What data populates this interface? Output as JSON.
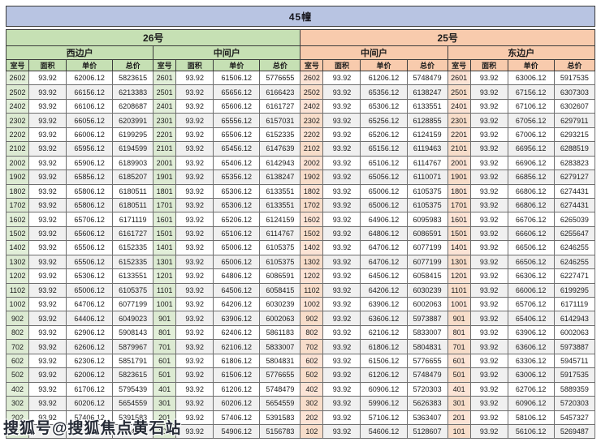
{
  "title": "45幢",
  "watermark": "搜狐号@搜狐焦点黄石站",
  "columns": [
    "室号",
    "面积",
    "单价",
    "总价"
  ],
  "sections": [
    {
      "label": "26号",
      "theme": "green",
      "groups": [
        "西边户",
        "中间户"
      ]
    },
    {
      "label": "25号",
      "theme": "orange",
      "groups": [
        "中间户",
        "东边户"
      ]
    }
  ],
  "colors": {
    "top_bar": "#b8c4e2",
    "section_green": "#c6e0b4",
    "section_orange": "#f8cbad",
    "room_green": "#e2efd9",
    "room_orange": "#fce4d6",
    "stripe": "#f0f0f0"
  },
  "rows": [
    [
      "2602",
      "93.92",
      "62006.12",
      "5823615",
      "2601",
      "93.92",
      "61506.12",
      "5776655",
      "2602",
      "93.92",
      "61206.12",
      "5748479",
      "2601",
      "93.92",
      "63006.12",
      "5917535"
    ],
    [
      "2502",
      "93.92",
      "66156.12",
      "6213383",
      "2501",
      "93.92",
      "65656.12",
      "6166423",
      "2502",
      "93.92",
      "65356.12",
      "6138247",
      "2501",
      "93.92",
      "67156.12",
      "6307303"
    ],
    [
      "2402",
      "93.92",
      "66106.12",
      "6208687",
      "2401",
      "93.92",
      "65606.12",
      "6161727",
      "2402",
      "93.92",
      "65306.12",
      "6133551",
      "2401",
      "93.92",
      "67106.12",
      "6302607"
    ],
    [
      "2302",
      "93.92",
      "66056.12",
      "6203991",
      "2301",
      "93.92",
      "65556.12",
      "6157031",
      "2302",
      "93.92",
      "65256.12",
      "6128855",
      "2301",
      "93.92",
      "67056.12",
      "6297911"
    ],
    [
      "2202",
      "93.92",
      "66006.12",
      "6199295",
      "2201",
      "93.92",
      "65506.12",
      "6152335",
      "2202",
      "93.92",
      "65206.12",
      "6124159",
      "2201",
      "93.92",
      "67006.12",
      "6293215"
    ],
    [
      "2102",
      "93.92",
      "65956.12",
      "6194599",
      "2101",
      "93.92",
      "65456.12",
      "6147639",
      "2102",
      "93.92",
      "65156.12",
      "6119463",
      "2101",
      "93.92",
      "66956.12",
      "6288519"
    ],
    [
      "2002",
      "93.92",
      "65906.12",
      "6189903",
      "2001",
      "93.92",
      "65406.12",
      "6142943",
      "2002",
      "93.92",
      "65106.12",
      "6114767",
      "2001",
      "93.92",
      "66906.12",
      "6283823"
    ],
    [
      "1902",
      "93.92",
      "65856.12",
      "6185207",
      "1901",
      "93.92",
      "65356.12",
      "6138247",
      "1902",
      "93.92",
      "65056.12",
      "6110071",
      "1901",
      "93.92",
      "66856.12",
      "6279127"
    ],
    [
      "1802",
      "93.92",
      "65806.12",
      "6180511",
      "1801",
      "93.92",
      "65306.12",
      "6133551",
      "1802",
      "93.92",
      "65006.12",
      "6105375",
      "1801",
      "93.92",
      "66806.12",
      "6274431"
    ],
    [
      "1702",
      "93.92",
      "65806.12",
      "6180511",
      "1701",
      "93.92",
      "65306.12",
      "6133551",
      "1702",
      "93.92",
      "65006.12",
      "6105375",
      "1701",
      "93.92",
      "66806.12",
      "6274431"
    ],
    [
      "1602",
      "93.92",
      "65706.12",
      "6171119",
      "1601",
      "93.92",
      "65206.12",
      "6124159",
      "1602",
      "93.92",
      "64906.12",
      "6095983",
      "1601",
      "93.92",
      "66706.12",
      "6265039"
    ],
    [
      "1502",
      "93.92",
      "65606.12",
      "6161727",
      "1501",
      "93.92",
      "65106.12",
      "6114767",
      "1502",
      "93.92",
      "64806.12",
      "6086591",
      "1501",
      "93.92",
      "66606.12",
      "6255647"
    ],
    [
      "1402",
      "93.92",
      "65506.12",
      "6152335",
      "1401",
      "93.92",
      "65006.12",
      "6105375",
      "1402",
      "93.92",
      "64706.12",
      "6077199",
      "1401",
      "93.92",
      "66506.12",
      "6246255"
    ],
    [
      "1302",
      "93.92",
      "65506.12",
      "6152335",
      "1301",
      "93.92",
      "65006.12",
      "6105375",
      "1302",
      "93.92",
      "64706.12",
      "6077199",
      "1301",
      "93.92",
      "66506.12",
      "6246255"
    ],
    [
      "1202",
      "93.92",
      "65306.12",
      "6133551",
      "1201",
      "93.92",
      "64806.12",
      "6086591",
      "1202",
      "93.92",
      "64506.12",
      "6058415",
      "1201",
      "93.92",
      "66306.12",
      "6227471"
    ],
    [
      "1102",
      "93.92",
      "65006.12",
      "6105375",
      "1101",
      "93.92",
      "64506.12",
      "6058415",
      "1102",
      "93.92",
      "64206.12",
      "6030239",
      "1101",
      "93.92",
      "66006.12",
      "6199295"
    ],
    [
      "1002",
      "93.92",
      "64706.12",
      "6077199",
      "1001",
      "93.92",
      "64206.12",
      "6030239",
      "1002",
      "93.92",
      "63906.12",
      "6002063",
      "1001",
      "93.92",
      "65706.12",
      "6171119"
    ],
    [
      "902",
      "93.92",
      "64406.12",
      "6049023",
      "901",
      "93.92",
      "63906.12",
      "6002063",
      "902",
      "93.92",
      "63606.12",
      "5973887",
      "901",
      "93.92",
      "65406.12",
      "6142943"
    ],
    [
      "802",
      "93.92",
      "62906.12",
      "5908143",
      "801",
      "93.92",
      "62406.12",
      "5861183",
      "802",
      "93.92",
      "62106.12",
      "5833007",
      "801",
      "93.92",
      "63906.12",
      "6002063"
    ],
    [
      "702",
      "93.92",
      "62606.12",
      "5879967",
      "701",
      "93.92",
      "62106.12",
      "5833007",
      "702",
      "93.92",
      "61806.12",
      "5804831",
      "701",
      "93.92",
      "63606.12",
      "5973887"
    ],
    [
      "602",
      "93.92",
      "62306.12",
      "5851791",
      "601",
      "93.92",
      "61806.12",
      "5804831",
      "602",
      "93.92",
      "61506.12",
      "5776655",
      "601",
      "93.92",
      "63306.12",
      "5945711"
    ],
    [
      "502",
      "93.92",
      "62006.12",
      "5823615",
      "501",
      "93.92",
      "61506.12",
      "5776655",
      "502",
      "93.92",
      "61206.12",
      "5748479",
      "501",
      "93.92",
      "63006.12",
      "5917535"
    ],
    [
      "402",
      "93.92",
      "61706.12",
      "5795439",
      "401",
      "93.92",
      "61206.12",
      "5748479",
      "402",
      "93.92",
      "60906.12",
      "5720303",
      "401",
      "93.92",
      "62706.12",
      "5889359"
    ],
    [
      "302",
      "93.92",
      "60206.12",
      "5654559",
      "301",
      "93.92",
      "60206.12",
      "5654559",
      "302",
      "93.92",
      "59906.12",
      "5626383",
      "301",
      "93.92",
      "60906.12",
      "5720303"
    ],
    [
      "202",
      "93.92",
      "57406.12",
      "5391583",
      "201",
      "93.92",
      "57406.12",
      "5391583",
      "202",
      "93.92",
      "57106.12",
      "5363407",
      "201",
      "93.92",
      "58106.12",
      "5457327"
    ],
    [
      "",
      "",
      "",
      "743",
      "101",
      "93.92",
      "54906.12",
      "5156783",
      "102",
      "93.92",
      "54606.12",
      "5128607",
      "101",
      "93.92",
      "56106.12",
      "5269487"
    ]
  ]
}
